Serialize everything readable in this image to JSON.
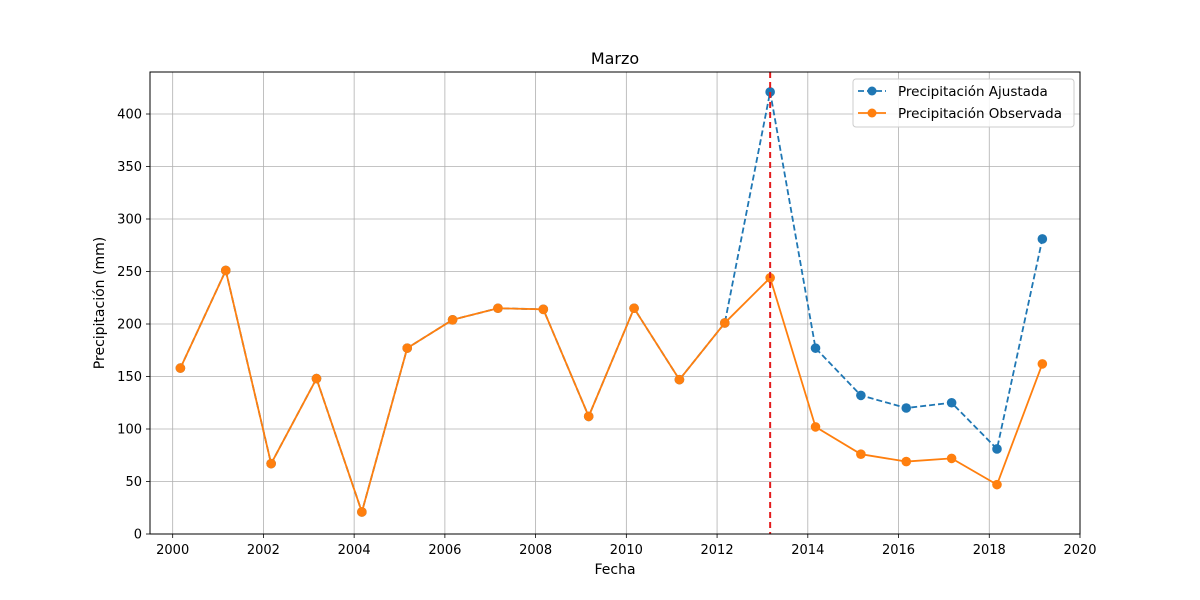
{
  "chart_data": {
    "type": "line",
    "title": "Marzo",
    "xlabel": "Fecha",
    "ylabel": "Precipitación (mm)",
    "xlim": [
      1999.5,
      2020.0
    ],
    "ylim": [
      0,
      440
    ],
    "xticks": [
      2000,
      2002,
      2004,
      2006,
      2008,
      2010,
      2012,
      2014,
      2016,
      2018,
      2020
    ],
    "yticks": [
      0,
      50,
      100,
      150,
      200,
      250,
      300,
      350,
      400
    ],
    "grid": true,
    "legend_position": "top-right",
    "marker_line": {
      "x": 2013.17,
      "color": "#e31a1c",
      "style": "dashed"
    },
    "x": [
      2000.17,
      2001.17,
      2002.17,
      2003.17,
      2004.17,
      2005.17,
      2006.17,
      2007.17,
      2008.17,
      2009.17,
      2010.17,
      2011.17,
      2012.17,
      2013.17,
      2014.17,
      2015.17,
      2016.17,
      2017.17,
      2018.17,
      2019.17
    ],
    "series": [
      {
        "name": "Precipitación Ajustada",
        "color": "#1f77b4",
        "style": "dashed",
        "values": [
          158,
          251,
          67,
          148,
          21,
          177,
          204,
          215,
          214,
          112,
          215,
          147,
          201,
          421,
          177,
          132,
          120,
          125,
          81,
          281
        ]
      },
      {
        "name": "Precipitación Observada",
        "color": "#ff7f0e",
        "style": "solid",
        "values": [
          158,
          251,
          67,
          148,
          21,
          177,
          204,
          215,
          214,
          112,
          215,
          147,
          201,
          244,
          102,
          76,
          69,
          72,
          47,
          162
        ]
      }
    ]
  }
}
